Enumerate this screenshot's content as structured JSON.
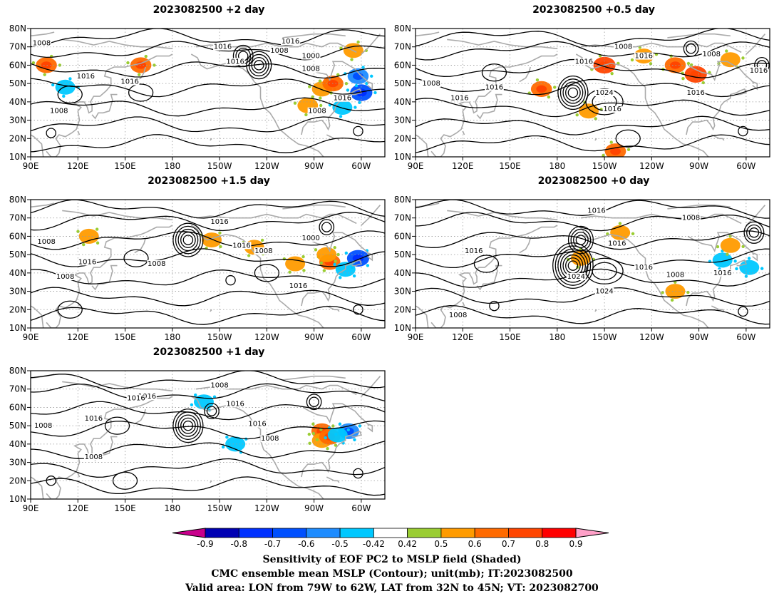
{
  "panels": [
    {
      "id": "p1",
      "title": "2023082500 +2 day",
      "lows": [
        [
          235,
          60,
          4
        ],
        [
          -135,
          65,
          3
        ],
        [
          -62,
          24,
          1
        ],
        [
          103,
          23,
          1
        ]
      ],
      "highs": [
        [
          115,
          44,
          1
        ],
        [
          160,
          45,
          1
        ]
      ],
      "clabels": [
        [
          97,
          72,
          "1008"
        ],
        [
          125,
          54,
          "1016"
        ],
        [
          153,
          51,
          "1016"
        ],
        [
          -140,
          62,
          "1016"
        ],
        [
          -105,
          73,
          "1016"
        ],
        [
          -112,
          68,
          "1008"
        ],
        [
          -92,
          65,
          "1000"
        ],
        [
          -92,
          58,
          "1008"
        ],
        [
          -148,
          70,
          "1016"
        ],
        [
          -72,
          42,
          "1016"
        ],
        [
          108,
          35,
          "1008"
        ],
        [
          -88,
          35,
          "1008"
        ]
      ],
      "shade": [
        [
          100,
          60,
          0.6
        ],
        [
          -94,
          38,
          0.55
        ],
        [
          -85,
          47,
          0.5
        ],
        [
          -65,
          68,
          0.5
        ],
        [
          -60,
          45,
          -0.7
        ],
        [
          -62,
          54,
          -0.6
        ],
        [
          -72,
          37,
          -0.5
        ],
        [
          160,
          60,
          0.6
        ],
        [
          112,
          48,
          -0.5
        ],
        [
          -78,
          50,
          0.6
        ]
      ]
    },
    {
      "id": "p2",
      "title": "2023082500 +0.5 day",
      "lows": [
        [
          -170,
          45,
          5
        ],
        [
          -95,
          69,
          2
        ],
        [
          -62,
          24,
          1
        ],
        [
          -50,
          60,
          2
        ]
      ],
      "highs": [
        [
          -150,
          40,
          2
        ],
        [
          140,
          56,
          1
        ],
        [
          -135,
          20,
          1
        ]
      ],
      "clabels": [
        [
          -163,
          62,
          "1016"
        ],
        [
          -138,
          70,
          "1008"
        ],
        [
          -125,
          65,
          "1016"
        ],
        [
          -82,
          66,
          "1008"
        ],
        [
          -52,
          57,
          "1016"
        ],
        [
          -150,
          45,
          "1024"
        ],
        [
          -145,
          36,
          "1016"
        ],
        [
          -92,
          45,
          "1016"
        ],
        [
          100,
          50,
          "1008"
        ],
        [
          118,
          42,
          "1016"
        ],
        [
          140,
          48,
          "1016"
        ]
      ],
      "shade": [
        [
          -150,
          60,
          0.7
        ],
        [
          -105,
          60,
          0.6
        ],
        [
          -125,
          65,
          0.5
        ],
        [
          -160,
          35,
          0.5
        ],
        [
          -143,
          13,
          0.6
        ],
        [
          170,
          47,
          0.6
        ],
        [
          -92,
          55,
          0.7
        ],
        [
          -70,
          63,
          0.5
        ]
      ]
    },
    {
      "id": "p3",
      "title": "2023082500 +1.5 day",
      "lows": [
        [
          -170,
          58,
          5
        ],
        [
          -62,
          20,
          1
        ],
        [
          -82,
          65,
          2
        ],
        [
          -143,
          36,
          1
        ]
      ],
      "highs": [
        [
          157,
          48,
          1
        ],
        [
          115,
          20,
          1
        ],
        [
          -120,
          40,
          1
        ]
      ],
      "clabels": [
        [
          -150,
          68,
          "1016"
        ],
        [
          -136,
          55,
          "1016"
        ],
        [
          -122,
          52,
          "1008"
        ],
        [
          -92,
          59,
          "1000"
        ],
        [
          170,
          45,
          "1008"
        ],
        [
          100,
          57,
          "1008"
        ],
        [
          126,
          46,
          "1016"
        ],
        [
          112,
          38,
          "1008"
        ],
        [
          -100,
          33,
          "1016"
        ]
      ],
      "shade": [
        [
          -80,
          46,
          0.6
        ],
        [
          -82,
          50,
          0.5
        ],
        [
          -128,
          54,
          0.5
        ],
        [
          -155,
          58,
          0.5
        ],
        [
          -62,
          48,
          -0.7
        ],
        [
          -102,
          45,
          0.5
        ],
        [
          127,
          60,
          0.5
        ],
        [
          -70,
          42,
          -0.5
        ]
      ]
    },
    {
      "id": "p4",
      "title": "2023082500 +0 day",
      "lows": [
        [
          -170,
          44,
          7
        ],
        [
          -165,
          58,
          4
        ],
        [
          -55,
          62,
          3
        ],
        [
          -62,
          19,
          1
        ],
        [
          140,
          22,
          1
        ]
      ],
      "highs": [
        [
          -150,
          41,
          2
        ],
        [
          135,
          45,
          1
        ]
      ],
      "clabels": [
        [
          -155,
          74,
          "1016"
        ],
        [
          -142,
          56,
          "1016"
        ],
        [
          -95,
          70,
          "1008"
        ],
        [
          -125,
          43,
          "1016"
        ],
        [
          -105,
          39,
          "1008"
        ],
        [
          -168,
          38,
          "1024"
        ],
        [
          -150,
          30,
          "1024"
        ],
        [
          -75,
          40,
          "1016"
        ],
        [
          127,
          52,
          "1016"
        ],
        [
          117,
          17,
          "1008"
        ]
      ],
      "shade": [
        [
          -140,
          62,
          0.5
        ],
        [
          -165,
          48,
          0.5
        ],
        [
          -75,
          47,
          -0.5
        ],
        [
          -70,
          55,
          0.5
        ],
        [
          -58,
          43,
          -0.5
        ],
        [
          -105,
          30,
          0.5
        ]
      ]
    },
    {
      "id": "p5",
      "title": "2023082500 +1 day",
      "lows": [
        [
          -170,
          50,
          5
        ],
        [
          -90,
          63,
          2
        ],
        [
          -62,
          24,
          1
        ],
        [
          -155,
          58,
          2
        ],
        [
          103,
          20,
          1
        ]
      ],
      "highs": [
        [
          145,
          50,
          1
        ],
        [
          150,
          20,
          1
        ]
      ],
      "clabels": [
        [
          164,
          66,
          "1016"
        ],
        [
          157,
          65,
          "1016"
        ],
        [
          -150,
          72,
          "1008"
        ],
        [
          -140,
          62,
          "1016"
        ],
        [
          -126,
          51,
          "1016"
        ],
        [
          -118,
          43,
          "1008"
        ],
        [
          98,
          50,
          "1008"
        ],
        [
          130,
          54,
          "1016"
        ],
        [
          130,
          33,
          "1008"
        ]
      ],
      "shade": [
        [
          -85,
          47,
          0.6
        ],
        [
          -85,
          42,
          0.5
        ],
        [
          -80,
          44,
          0.6
        ],
        [
          -68,
          47,
          -0.6
        ],
        [
          -160,
          63,
          -0.5
        ],
        [
          -140,
          40,
          -0.5
        ],
        [
          -75,
          45,
          -0.5
        ]
      ]
    }
  ],
  "colorbar": {
    "labels": [
      "-0.9",
      "-0.8",
      "-0.7",
      "-0.6",
      "-0.5",
      "-0.42",
      "0.42",
      "0.5",
      "0.6",
      "0.7",
      "0.8",
      "0.9"
    ],
    "colors": [
      "#0000b3",
      "#0030ff",
      "#0050ff",
      "#1e8cff",
      "#00c8ff",
      "#ffffff",
      "#9acd32",
      "#ff9b00",
      "#ff6a00",
      "#ff4500",
      "#ff0000"
    ],
    "low_extend_color": "#c8008c",
    "high_extend_color": "#ffa0c8"
  },
  "footer": {
    "line1": "Sensitivity of EOF PC2 to MSLP field (Shaded)",
    "line2": "CMC ensemble mean MSLP (Contour); unit(mb); IT:2023082500",
    "line3": "Valid area: LON from 79W to 62W, LAT from 32N to 45N; VT: 2023082700"
  },
  "axes": {
    "x_ticks": [
      "90E",
      "120E",
      "150E",
      "180",
      "150W",
      "120W",
      "90W",
      "60W"
    ],
    "y_ticks": [
      "80N",
      "70N",
      "60N",
      "50N",
      "40N",
      "30N",
      "20N",
      "10N"
    ]
  },
  "chart_data": [
    {
      "type": "heatmap",
      "title": "2023082500 +2 day",
      "x_range": [
        "90E",
        "45W"
      ],
      "y_range": [
        "10N",
        "80N"
      ],
      "contour_labels_mb": [
        1000,
        1008,
        1016
      ]
    },
    {
      "type": "heatmap",
      "title": "2023082500 +0.5 day",
      "x_range": [
        "90E",
        "45W"
      ],
      "y_range": [
        "10N",
        "80N"
      ],
      "contour_labels_mb": [
        1008,
        1016,
        1024
      ]
    },
    {
      "type": "heatmap",
      "title": "2023082500 +1.5 day",
      "x_range": [
        "90E",
        "45W"
      ],
      "y_range": [
        "10N",
        "80N"
      ],
      "contour_labels_mb": [
        1000,
        1008,
        1016
      ]
    },
    {
      "type": "heatmap",
      "title": "2023082500 +0 day",
      "x_range": [
        "90E",
        "45W"
      ],
      "y_range": [
        "10N",
        "80N"
      ],
      "contour_labels_mb": [
        1008,
        1016,
        1024
      ]
    },
    {
      "type": "heatmap",
      "title": "2023082500 +1 day",
      "x_range": [
        "90E",
        "45W"
      ],
      "y_range": [
        "10N",
        "80N"
      ],
      "contour_labels_mb": [
        1008,
        1016
      ]
    }
  ]
}
